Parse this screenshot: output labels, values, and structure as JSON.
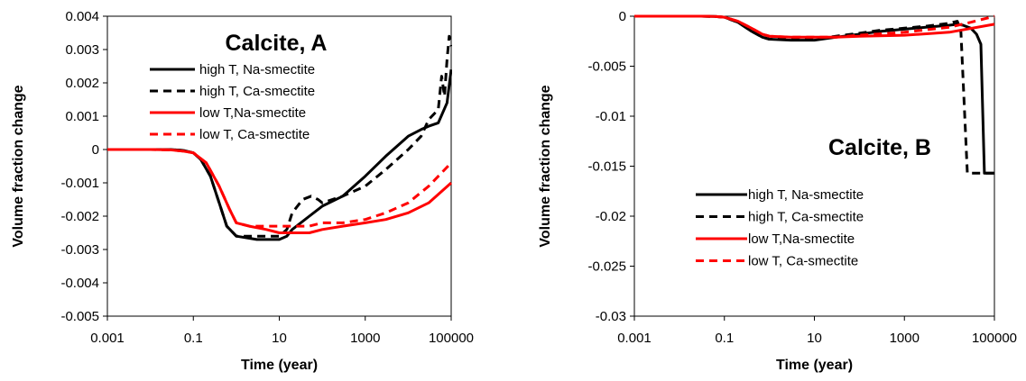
{
  "chart_data": [
    {
      "type": "line",
      "title": "Calcite, A",
      "xlabel": "Time (year)",
      "ylabel": "Volume fraction change",
      "x_scale": "log",
      "xlim": [
        0.001,
        100000
      ],
      "ylim": [
        -0.005,
        0.004
      ],
      "x_ticks": [
        "0.001",
        "0.1",
        "10",
        "1000",
        "100000"
      ],
      "y_ticks": [
        "-0.005",
        "-0.004",
        "-0.003",
        "-0.002",
        "-0.001",
        "0",
        "0.001",
        "0.002",
        "0.003",
        "0.004"
      ],
      "legend_position": "top-right",
      "series": [
        {
          "name": "high T, Na-smectite",
          "color": "#000000",
          "dash": "solid",
          "x": [
            0.001,
            0.01,
            0.03,
            0.06,
            0.1,
            0.15,
            0.25,
            0.4,
            0.6,
            1,
            3,
            10,
            15,
            20,
            50,
            100,
            300,
            1000,
            3000,
            10000,
            20000,
            30000,
            50000,
            80000,
            100000
          ],
          "y": [
            0,
            0,
            0,
            -3e-05,
            -0.0001,
            -0.0003,
            -0.0008,
            -0.0016,
            -0.0023,
            -0.0026,
            -0.0027,
            -0.0027,
            -0.0026,
            -0.0024,
            -0.002,
            -0.0017,
            -0.0014,
            -0.0008,
            -0.0002,
            0.0004,
            0.0006,
            0.0007,
            0.0008,
            0.0014,
            0.0024
          ]
        },
        {
          "name": "high T, Ca-smectite",
          "color": "#000000",
          "dash": "dashed",
          "x": [
            0.001,
            0.01,
            0.03,
            0.06,
            0.1,
            0.15,
            0.25,
            0.4,
            0.6,
            1,
            3,
            10,
            15,
            20,
            35,
            55,
            80,
            100,
            300,
            1000,
            3000,
            10000,
            20000,
            30000,
            50000,
            60000,
            70000,
            80000,
            90000,
            100000
          ],
          "y": [
            0,
            0,
            0,
            -3e-05,
            -0.0001,
            -0.0003,
            -0.0008,
            -0.0016,
            -0.0023,
            -0.0026,
            -0.0026,
            -0.0026,
            -0.0024,
            -0.0019,
            -0.0015,
            -0.0014,
            -0.0015,
            -0.0016,
            -0.0014,
            -0.0011,
            -0.0006,
            0,
            0.0004,
            0.0009,
            0.0012,
            0.0022,
            0.0016,
            0.0027,
            0.0034,
            0.0031
          ]
        },
        {
          "name": "low T,Na-smectite",
          "color": "#ff0000",
          "dash": "solid",
          "x": [
            0.001,
            0.01,
            0.03,
            0.06,
            0.1,
            0.2,
            0.4,
            0.7,
            1,
            2,
            5,
            10,
            20,
            50,
            100,
            300,
            1000,
            3000,
            10000,
            30000,
            100000
          ],
          "y": [
            0,
            0,
            -1e-05,
            -5e-05,
            -0.0001,
            -0.0004,
            -0.0011,
            -0.0018,
            -0.0022,
            -0.0023,
            -0.0024,
            -0.0025,
            -0.0025,
            -0.0025,
            -0.0024,
            -0.0023,
            -0.0022,
            -0.0021,
            -0.0019,
            -0.0016,
            -0.001
          ]
        },
        {
          "name": "low T, Ca-smectite",
          "color": "#ff0000",
          "dash": "dashed",
          "x": [
            0.001,
            0.01,
            0.03,
            0.06,
            0.1,
            0.2,
            0.4,
            0.7,
            1,
            2,
            5,
            10,
            20,
            50,
            100,
            300,
            1000,
            3000,
            10000,
            30000,
            100000
          ],
          "y": [
            0,
            0,
            -1e-05,
            -5e-05,
            -0.0001,
            -0.0004,
            -0.0011,
            -0.0018,
            -0.0022,
            -0.0023,
            -0.0023,
            -0.0023,
            -0.0023,
            -0.0023,
            -0.0022,
            -0.0022,
            -0.0021,
            -0.0019,
            -0.0016,
            -0.0011,
            -0.0004
          ]
        }
      ]
    },
    {
      "type": "line",
      "title": "Calcite, B",
      "xlabel": "Time (year)",
      "ylabel": "Volume fraction change",
      "x_scale": "log",
      "xlim": [
        0.001,
        100000
      ],
      "ylim": [
        -0.03,
        0
      ],
      "x_ticks": [
        "0.001",
        "0.1",
        "10",
        "1000",
        "100000"
      ],
      "y_ticks": [
        "-0.03",
        "-0.025",
        "-0.02",
        "-0.015",
        "-0.01",
        "-0.005",
        "0"
      ],
      "legend_position": "bottom-right",
      "series": [
        {
          "name": "high T, Na-smectite",
          "color": "#000000",
          "dash": "solid",
          "x": [
            0.001,
            0.01,
            0.03,
            0.06,
            0.1,
            0.2,
            0.4,
            0.7,
            1,
            3,
            10,
            30,
            100,
            300,
            1000,
            3000,
            10000,
            15000,
            20000,
            30000,
            40000,
            50000,
            60000,
            100000
          ],
          "y": [
            0,
            0,
            0,
            -3e-05,
            -0.0001,
            -0.0006,
            -0.0015,
            -0.0021,
            -0.0023,
            -0.0024,
            -0.0024,
            -0.0021,
            -0.0018,
            -0.0015,
            -0.0013,
            -0.0011,
            -0.0009,
            -0.0008,
            -0.0009,
            -0.0012,
            -0.0018,
            -0.0028,
            -0.0157,
            -0.0157
          ]
        },
        {
          "name": "high T, Ca-smectite",
          "color": "#000000",
          "dash": "dashed",
          "x": [
            0.001,
            0.01,
            0.03,
            0.06,
            0.1,
            0.2,
            0.4,
            0.7,
            1,
            3,
            10,
            30,
            100,
            300,
            1000,
            3000,
            10000,
            15000,
            18000,
            25000,
            30000,
            100000
          ],
          "y": [
            0,
            0,
            0,
            -3e-05,
            -0.0001,
            -0.0006,
            -0.0015,
            -0.0021,
            -0.0023,
            -0.0023,
            -0.0023,
            -0.002,
            -0.0017,
            -0.0014,
            -0.0012,
            -0.001,
            -0.0007,
            -0.0005,
            -0.0016,
            -0.0157,
            -0.0157,
            -0.0157
          ]
        },
        {
          "name": "low T,Na-smectite",
          "color": "#ff0000",
          "dash": "solid",
          "x": [
            0.001,
            0.01,
            0.03,
            0.06,
            0.1,
            0.2,
            0.4,
            0.7,
            1,
            3,
            10,
            30,
            100,
            1000,
            10000,
            100000
          ],
          "y": [
            0,
            0,
            0,
            -2e-05,
            -0.0001,
            -0.0005,
            -0.0012,
            -0.0018,
            -0.002,
            -0.0021,
            -0.0021,
            -0.0021,
            -0.002,
            -0.0019,
            -0.0016,
            -0.0008
          ]
        },
        {
          "name": "low T, Ca-smectite",
          "color": "#ff0000",
          "dash": "dashed",
          "x": [
            0.001,
            0.01,
            0.03,
            0.06,
            0.1,
            0.2,
            0.4,
            0.7,
            1,
            3,
            10,
            30,
            100,
            1000,
            10000,
            30000,
            100000
          ],
          "y": [
            0,
            0,
            0,
            -2e-05,
            -0.0001,
            -0.0005,
            -0.0012,
            -0.0018,
            -0.002,
            -0.0021,
            -0.0021,
            -0.0021,
            -0.0019,
            -0.0016,
            -0.0011,
            -0.0006,
            0
          ]
        }
      ]
    }
  ]
}
